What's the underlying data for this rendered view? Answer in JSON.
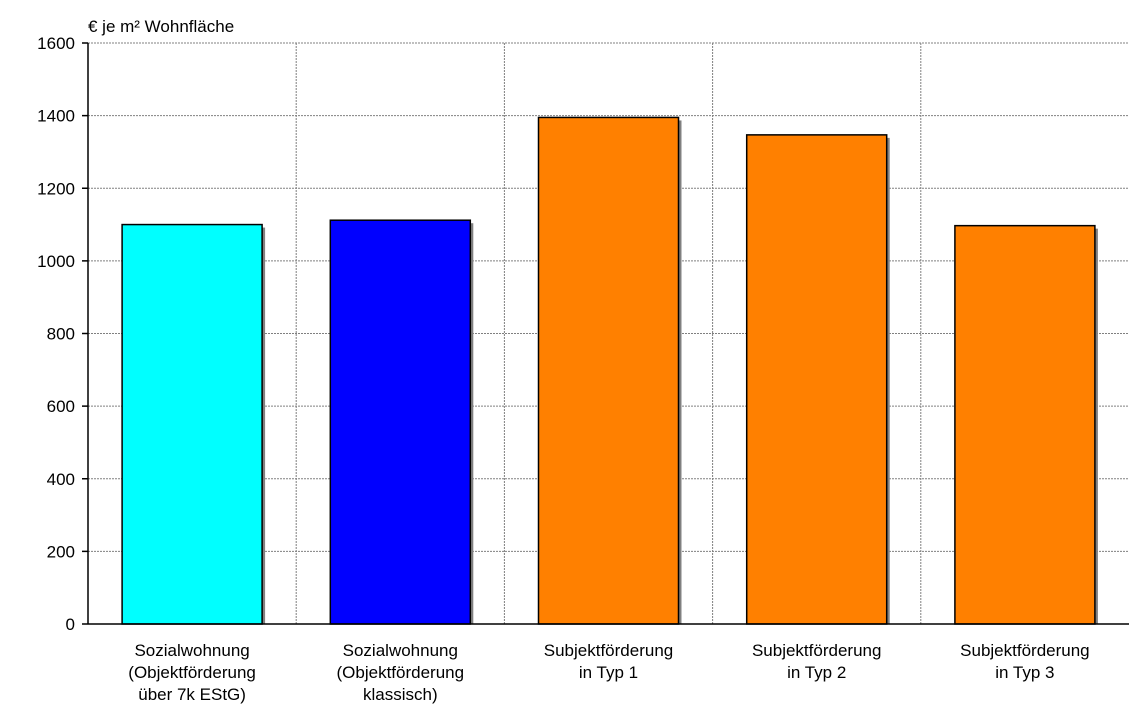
{
  "chart_data": {
    "type": "bar",
    "ylabel": "€ je m² Wohnfläche",
    "ylim": [
      0,
      1600
    ],
    "yticks": [
      0,
      200,
      400,
      600,
      800,
      1000,
      1200,
      1400,
      1600
    ],
    "grid": true,
    "categories": [
      [
        "Sozialwohnung",
        "(Objektförderung",
        "über 7k EStG)"
      ],
      [
        "Sozialwohnung",
        "(Objektförderung",
        "klassisch)"
      ],
      [
        "Subjektförderung",
        "in Typ 1"
      ],
      [
        "Subjektförderung",
        "in Typ 2"
      ],
      [
        "Subjektförderung",
        "in Typ 3"
      ]
    ],
    "values": [
      1100,
      1112,
      1395,
      1347,
      1097
    ],
    "colors": [
      "#00ffff",
      "#0000ff",
      "#ff8000",
      "#ff8000",
      "#ff8000"
    ]
  }
}
